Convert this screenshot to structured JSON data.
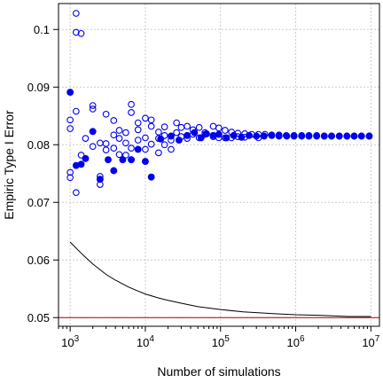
{
  "chart_data": {
    "type": "scatter",
    "title": "",
    "xlabel": "Number of simulations",
    "ylabel": "Empiric Type I Error",
    "x_scale": "log10",
    "xlim": [
      700,
      13000000
    ],
    "ylim": [
      0.0485,
      0.1045
    ],
    "grid": true,
    "x_ticks": [
      {
        "value": 1000,
        "base": "10",
        "exp": "3"
      },
      {
        "value": 10000,
        "base": "10",
        "exp": "4"
      },
      {
        "value": 100000,
        "base": "10",
        "exp": "5"
      },
      {
        "value": 1000000,
        "base": "10",
        "exp": "6"
      },
      {
        "value": 10000000,
        "base": "10",
        "exp": "7"
      }
    ],
    "y_ticks": [
      {
        "value": 0.05,
        "label": "0.05"
      },
      {
        "value": 0.06,
        "label": "0.06"
      },
      {
        "value": 0.07,
        "label": "0.07"
      },
      {
        "value": 0.08,
        "label": "0.08"
      },
      {
        "value": 0.09,
        "label": "0.09"
      },
      {
        "value": 0.1,
        "label": "0.1"
      }
    ],
    "colors": {
      "points": "#0000ee",
      "curve": "#000000",
      "reference": "#aa0000",
      "grid": "#cccccc"
    },
    "series": [
      {
        "style": "open-circle",
        "points": [
          [
            1000,
            0.0843
          ],
          [
            1000,
            0.0828
          ],
          [
            1000,
            0.0752
          ],
          [
            1000,
            0.0743
          ],
          [
            1200,
            0.1028
          ],
          [
            1200,
            0.0995
          ],
          [
            1200,
            0.0858
          ],
          [
            1200,
            0.0717
          ],
          [
            1400,
            0.0993
          ],
          [
            1400,
            0.0782
          ],
          [
            1600,
            0.0811
          ],
          [
            2000,
            0.0868
          ],
          [
            2000,
            0.0862
          ],
          [
            2000,
            0.0797
          ],
          [
            2500,
            0.0803
          ],
          [
            2500,
            0.0745
          ],
          [
            2500,
            0.0731
          ],
          [
            3000,
            0.0853
          ],
          [
            3000,
            0.0791
          ],
          [
            3000,
            0.0802
          ],
          [
            3800,
            0.0842
          ],
          [
            3800,
            0.0817
          ],
          [
            3800,
            0.0794
          ],
          [
            4500,
            0.0825
          ],
          [
            4500,
            0.0811
          ],
          [
            4500,
            0.0783
          ],
          [
            5500,
            0.0821
          ],
          [
            5500,
            0.0803
          ],
          [
            5500,
            0.0782
          ],
          [
            6500,
            0.087
          ],
          [
            6500,
            0.0856
          ],
          [
            6500,
            0.0794
          ],
          [
            6500,
            0.0774
          ],
          [
            8000,
            0.0838
          ],
          [
            8000,
            0.0826
          ],
          [
            8000,
            0.0808
          ],
          [
            10000,
            0.0846
          ],
          [
            10000,
            0.0812
          ],
          [
            10000,
            0.0792
          ],
          [
            12000,
            0.0843
          ],
          [
            12000,
            0.0832
          ],
          [
            12000,
            0.0801
          ],
          [
            15000,
            0.0822
          ],
          [
            15000,
            0.0811
          ],
          [
            15000,
            0.0786
          ],
          [
            18000,
            0.0831
          ],
          [
            18000,
            0.0816
          ],
          [
            18000,
            0.08
          ],
          [
            22000,
            0.0808
          ],
          [
            22000,
            0.0792
          ],
          [
            26000,
            0.0838
          ],
          [
            26000,
            0.0821
          ],
          [
            30000,
            0.083
          ],
          [
            30000,
            0.0814
          ],
          [
            36000,
            0.0832
          ],
          [
            36000,
            0.0811
          ],
          [
            43000,
            0.0826
          ],
          [
            43000,
            0.0818
          ],
          [
            52000,
            0.083
          ],
          [
            52000,
            0.0812
          ],
          [
            62000,
            0.0821
          ],
          [
            62000,
            0.0818
          ],
          [
            80000,
            0.0832
          ],
          [
            80000,
            0.0814
          ],
          [
            95000,
            0.0829
          ],
          [
            95000,
            0.0812
          ],
          [
            115000,
            0.0825
          ],
          [
            115000,
            0.0812
          ],
          [
            140000,
            0.0822
          ],
          [
            140000,
            0.0812
          ],
          [
            170000,
            0.082
          ],
          [
            170000,
            0.0814
          ],
          [
            210000,
            0.0819
          ],
          [
            210000,
            0.0813
          ],
          [
            260000,
            0.0818
          ],
          [
            320000,
            0.0818
          ],
          [
            320000,
            0.0812
          ],
          [
            390000,
            0.0818
          ],
          [
            480000,
            0.0817
          ],
          [
            600000,
            0.0817
          ],
          [
            750000,
            0.0816
          ],
          [
            950000,
            0.0816
          ],
          [
            1200000,
            0.0816
          ],
          [
            1500000,
            0.0816
          ],
          [
            1900000,
            0.0816
          ],
          [
            2400000,
            0.0815
          ],
          [
            3000000,
            0.0815
          ],
          [
            3800000,
            0.0815
          ],
          [
            4800000,
            0.0815
          ],
          [
            6000000,
            0.0815
          ],
          [
            7500000,
            0.0815
          ],
          [
            9500000,
            0.0815
          ]
        ]
      },
      {
        "style": "filled-circle",
        "points": [
          [
            1000,
            0.0891
          ],
          [
            1200,
            0.0764
          ],
          [
            1400,
            0.0766
          ],
          [
            1600,
            0.0776
          ],
          [
            2000,
            0.0823
          ],
          [
            2500,
            0.074
          ],
          [
            3200,
            0.0774
          ],
          [
            3800,
            0.0755
          ],
          [
            5000,
            0.0774
          ],
          [
            6500,
            0.0774
          ],
          [
            8000,
            0.0792
          ],
          [
            10000,
            0.0771
          ],
          [
            12000,
            0.0744
          ],
          [
            16000,
            0.081
          ],
          [
            22000,
            0.0815
          ],
          [
            28000,
            0.0808
          ],
          [
            36000,
            0.0816
          ],
          [
            45000,
            0.0821
          ],
          [
            55000,
            0.0812
          ],
          [
            65000,
            0.0819
          ],
          [
            80000,
            0.0816
          ],
          [
            95000,
            0.0818
          ],
          [
            120000,
            0.0812
          ],
          [
            150000,
            0.0816
          ],
          [
            190000,
            0.0813
          ],
          [
            240000,
            0.0816
          ],
          [
            300000,
            0.0815
          ],
          [
            380000,
            0.0815
          ],
          [
            480000,
            0.0816
          ],
          [
            600000,
            0.0815
          ],
          [
            760000,
            0.0815
          ],
          [
            950000,
            0.0815
          ],
          [
            1200000,
            0.0815
          ],
          [
            1500000,
            0.0815
          ],
          [
            1900000,
            0.0815
          ],
          [
            2400000,
            0.0815
          ],
          [
            3000000,
            0.0815
          ],
          [
            3800000,
            0.0815
          ],
          [
            4800000,
            0.0815
          ],
          [
            6000000,
            0.0815
          ],
          [
            7500000,
            0.0815
          ],
          [
            9500000,
            0.0815
          ]
        ]
      },
      {
        "style": "line",
        "points": [
          [
            1000,
            0.0631
          ],
          [
            1500,
            0.0608
          ],
          [
            2000,
            0.0593
          ],
          [
            3000,
            0.0575
          ],
          [
            4000,
            0.0565
          ],
          [
            6000,
            0.0553
          ],
          [
            8000,
            0.0546
          ],
          [
            10000,
            0.0541
          ],
          [
            15000,
            0.0534
          ],
          [
            20000,
            0.053
          ],
          [
            30000,
            0.0525
          ],
          [
            50000,
            0.0519
          ],
          [
            100000,
            0.0514
          ],
          [
            200000,
            0.051
          ],
          [
            500000,
            0.0507
          ],
          [
            1000000,
            0.0505
          ],
          [
            2000000,
            0.0504
          ],
          [
            5000000,
            0.0502
          ],
          [
            10000000,
            0.0502
          ]
        ]
      },
      {
        "style": "reference-line",
        "points": [
          [
            700,
            0.05
          ],
          [
            13000000,
            0.05
          ]
        ]
      }
    ]
  }
}
